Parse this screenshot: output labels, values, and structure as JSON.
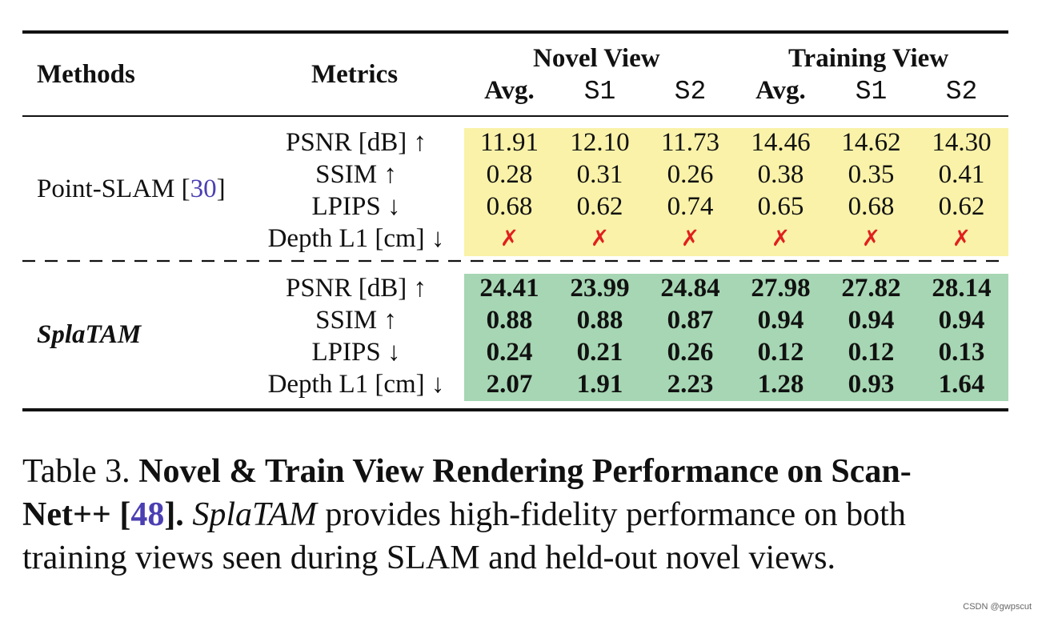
{
  "table": {
    "header": {
      "methods": "Methods",
      "metrics": "Metrics",
      "novel_view": "Novel View",
      "training_view": "Training View",
      "sub": [
        "Avg.",
        "S1",
        "S2",
        "Avg.",
        "S1",
        "S2"
      ]
    },
    "groups": [
      {
        "method": "Point-SLAM",
        "cite": "30",
        "metrics": [
          "PSNR [dB] ↑",
          "SSIM ↑",
          "LPIPS ↓",
          "Depth L1 [cm] ↓"
        ],
        "rows": [
          [
            "11.91",
            "12.10",
            "11.73",
            "14.46",
            "14.62",
            "14.30"
          ],
          [
            "0.28",
            "0.31",
            "0.26",
            "0.38",
            "0.35",
            "0.41"
          ],
          [
            "0.68",
            "0.62",
            "0.74",
            "0.65",
            "0.68",
            "0.62"
          ],
          [
            "✗",
            "✗",
            "✗",
            "✗",
            "✗",
            "✗"
          ]
        ],
        "highlight_color": "#f9f2a8"
      },
      {
        "method": "SplaTAM",
        "metrics": [
          "PSNR [dB] ↑",
          "SSIM ↑",
          "LPIPS ↓",
          "Depth L1 [cm] ↓"
        ],
        "rows": [
          [
            "24.41",
            "23.99",
            "24.84",
            "27.98",
            "27.82",
            "28.14"
          ],
          [
            "0.88",
            "0.88",
            "0.87",
            "0.94",
            "0.94",
            "0.94"
          ],
          [
            "0.24",
            "0.21",
            "0.26",
            "0.12",
            "0.12",
            "0.13"
          ],
          [
            "2.07",
            "1.91",
            "2.23",
            "1.28",
            "0.93",
            "1.64"
          ]
        ],
        "highlight_color": "#a6d6b3"
      }
    ]
  },
  "caption": {
    "label": "Table 3.",
    "title_part1": "Novel & Train View Rendering Performance on Scan-",
    "title_part2": "Net++ [",
    "cite": "48",
    "title_part3": "].",
    "method": "SplaTAM",
    "body_line1": " provides high-fidelity performance on both",
    "body_line2": "training views seen during SLAM and held-out novel views."
  },
  "watermark": "CSDN @gwpscut",
  "colors": {
    "cross": "#e0201e",
    "cite": "#4b3fb2"
  }
}
